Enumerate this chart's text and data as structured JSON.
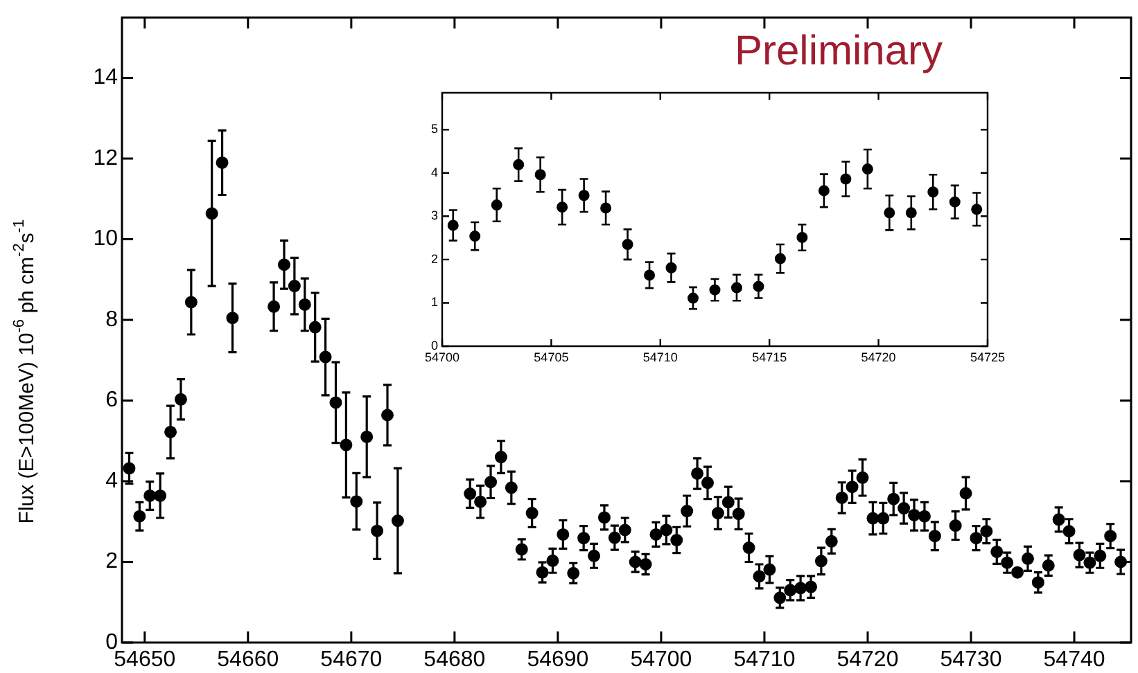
{
  "chart_data": [
    {
      "type": "scatter",
      "ylabel": "Flux (E>100MeV) 10$^{-6}$ ph cm$^{-2}$s$^{-1}$",
      "annotations": [
        "Preliminary"
      ],
      "color": "#000000",
      "marker": "circle",
      "grid": false,
      "legend": false,
      "xlim": [
        54647.8,
        54745.5
      ],
      "ylim": [
        0,
        15.5
      ],
      "xticks": [
        54650,
        54660,
        54670,
        54680,
        54690,
        54700,
        54710,
        54720,
        54730,
        54740
      ],
      "yticks": [
        0,
        2,
        4,
        6,
        8,
        10,
        12,
        14
      ],
      "x": [
        54648.5,
        54649.5,
        54650.5,
        54651.5,
        54652.5,
        54653.5,
        54654.5,
        54656.5,
        54657.5,
        54658.5,
        54662.5,
        54663.5,
        54664.5,
        54665.5,
        54666.5,
        54667.5,
        54668.5,
        54669.5,
        54670.5,
        54671.5,
        54672.5,
        54673.5,
        54674.5,
        54681.5,
        54682.5,
        54683.5,
        54684.5,
        54685.5,
        54686.5,
        54687.5,
        54688.5,
        54689.5,
        54690.5,
        54691.5,
        54692.5,
        54693.5,
        54694.5,
        54695.5,
        54696.5,
        54697.5,
        54698.5,
        54699.5,
        54700.5,
        54701.5,
        54702.5,
        54703.5,
        54704.5,
        54705.5,
        54706.5,
        54707.5,
        54708.5,
        54709.5,
        54710.5,
        54711.5,
        54712.5,
        54713.5,
        54714.5,
        54715.5,
        54716.5,
        54717.5,
        54718.5,
        54719.5,
        54720.5,
        54721.5,
        54722.5,
        54723.5,
        54724.5,
        54725.5,
        54726.5,
        54728.5,
        54729.5,
        54730.5,
        54731.5,
        54732.5,
        54733.5,
        54734.5,
        54735.5,
        54736.5,
        54737.5,
        54738.5,
        54739.5,
        54740.5,
        54741.5,
        54742.5,
        54743.5,
        54744.5
      ],
      "values": [
        4.32,
        3.13,
        3.64,
        3.64,
        5.22,
        6.03,
        8.44,
        10.64,
        11.9,
        8.05,
        8.33,
        9.37,
        8.84,
        8.38,
        7.82,
        7.08,
        5.95,
        4.9,
        3.5,
        5.1,
        2.77,
        5.64,
        3.02,
        3.69,
        3.49,
        3.98,
        4.6,
        3.84,
        2.31,
        3.21,
        1.74,
        2.03,
        2.68,
        1.72,
        2.59,
        2.15,
        3.1,
        2.6,
        2.79,
        2.0,
        1.94,
        2.68,
        2.79,
        2.54,
        3.26,
        4.19,
        3.96,
        3.21,
        3.48,
        3.19,
        2.35,
        1.64,
        1.81,
        1.11,
        1.3,
        1.35,
        1.38,
        2.02,
        2.51,
        3.59,
        3.86,
        4.09,
        3.08,
        3.08,
        3.56,
        3.33,
        3.16,
        3.13,
        2.64,
        2.9,
        3.7,
        2.59,
        2.76,
        2.25,
        1.98,
        1.74,
        2.08,
        1.49,
        1.91,
        3.05,
        2.76,
        2.17,
        1.98,
        2.15,
        2.64,
        2.0
      ],
      "errors": [
        0.38,
        0.35,
        0.35,
        0.55,
        0.65,
        0.5,
        0.8,
        1.8,
        0.8,
        0.85,
        0.6,
        0.6,
        0.7,
        0.65,
        0.85,
        0.95,
        1.0,
        1.3,
        0.7,
        1.0,
        0.7,
        0.75,
        1.3,
        0.35,
        0.4,
        0.4,
        0.4,
        0.4,
        0.25,
        0.35,
        0.25,
        0.3,
        0.35,
        0.25,
        0.3,
        0.3,
        0.3,
        0.3,
        0.3,
        0.25,
        0.25,
        0.3,
        0.35,
        0.32,
        0.38,
        0.38,
        0.4,
        0.4,
        0.38,
        0.38,
        0.35,
        0.3,
        0.33,
        0.25,
        0.25,
        0.3,
        0.27,
        0.33,
        0.3,
        0.38,
        0.4,
        0.45,
        0.4,
        0.38,
        0.4,
        0.38,
        0.38,
        0.35,
        0.35,
        0.35,
        0.4,
        0.3,
        0.3,
        0.3,
        0.25,
        null,
        0.3,
        0.25,
        0.25,
        0.3,
        0.3,
        0.3,
        0.25,
        0.3,
        0.3,
        0.3
      ]
    },
    {
      "type": "scatter",
      "color": "#000000",
      "marker": "circle",
      "grid": false,
      "legend": false,
      "xlim": [
        54700,
        54725
      ],
      "ylim": [
        0,
        5.85
      ],
      "xticks": [
        54700,
        54705,
        54710,
        54715,
        54720,
        54725
      ],
      "yticks": [
        0,
        1,
        2,
        3,
        4,
        5
      ],
      "x": [
        54700.5,
        54701.5,
        54702.5,
        54703.5,
        54704.5,
        54705.5,
        54706.5,
        54707.5,
        54708.5,
        54709.5,
        54710.5,
        54711.5,
        54712.5,
        54713.5,
        54714.5,
        54715.5,
        54716.5,
        54717.5,
        54718.5,
        54719.5,
        54720.5,
        54721.5,
        54722.5,
        54723.5,
        54724.5
      ],
      "values": [
        2.79,
        2.54,
        3.26,
        4.19,
        3.96,
        3.21,
        3.48,
        3.19,
        2.35,
        1.64,
        1.81,
        1.11,
        1.3,
        1.35,
        1.38,
        2.02,
        2.51,
        3.59,
        3.86,
        4.09,
        3.08,
        3.08,
        3.56,
        3.33,
        3.16
      ],
      "errors": [
        0.35,
        0.32,
        0.38,
        0.38,
        0.4,
        0.4,
        0.38,
        0.38,
        0.35,
        0.3,
        0.33,
        0.25,
        0.25,
        0.3,
        0.27,
        0.33,
        0.3,
        0.38,
        0.4,
        0.45,
        0.4,
        0.38,
        0.4,
        0.38,
        0.38
      ]
    }
  ]
}
